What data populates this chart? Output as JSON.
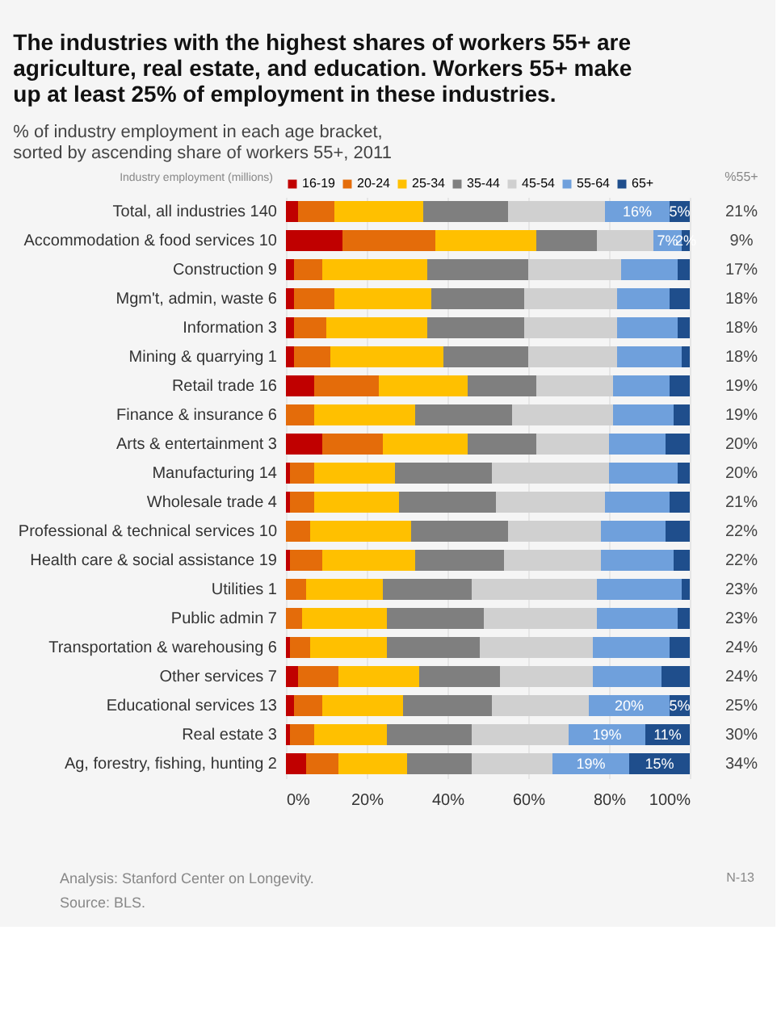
{
  "chart_data": {
    "type": "bar",
    "orientation": "horizontal",
    "stacked": true,
    "title": [
      "The industries with the highest shares of workers 55+ are",
      "agriculture, real estate, and education. Workers 55+ make",
      "up at least 25% of employment in these industries."
    ],
    "subtitle": [
      "% of industry employment in each age bracket,",
      "sorted by ascending share of workers 55+, 2011"
    ],
    "categories": [
      "Total, all industries  140",
      "Accommodation & food services  10",
      "Construction  9",
      "Mgm't, admin, waste  6",
      "Information  3",
      "Mining & quarrying  1",
      "Retail trade  16",
      "Finance & insurance  6",
      "Arts & entertainment  3",
      "Manufacturing  14",
      "Wholesale trade  4",
      "Professional & technical services  10",
      "Health care & social assistance  19",
      "Utilities  1",
      "Public admin  7",
      "Transportation & warehousing  6",
      "Other services  7",
      "Educational services  13",
      "Real estate  3",
      "Ag, forestry, fishing, hunting  2"
    ],
    "series": [
      {
        "name": "16-19",
        "color": "#c00000",
        "values": [
          3,
          14,
          2,
          2,
          2,
          2,
          7,
          0,
          9,
          1,
          1,
          0,
          1,
          0,
          0,
          1,
          3,
          2,
          1,
          5
        ]
      },
      {
        "name": "20-24",
        "color": "#e46c0a",
        "values": [
          9,
          23,
          7,
          10,
          8,
          9,
          16,
          7,
          15,
          6,
          6,
          6,
          8,
          5,
          4,
          5,
          10,
          7,
          6,
          8
        ]
      },
      {
        "name": "25-34",
        "color": "#ffc000",
        "values": [
          22,
          25,
          26,
          24,
          25,
          28,
          22,
          25,
          21,
          20,
          21,
          25,
          23,
          19,
          21,
          19,
          20,
          20,
          18,
          17
        ]
      },
      {
        "name": "35-44",
        "color": "#7f7f7f",
        "values": [
          21,
          15,
          25,
          23,
          24,
          21,
          17,
          24,
          17,
          24,
          24,
          24,
          22,
          22,
          24,
          23,
          20,
          22,
          21,
          16
        ]
      },
      {
        "name": "45-54",
        "color": "#d0d0d0",
        "values": [
          24,
          14,
          23,
          23,
          23,
          22,
          19,
          25,
          18,
          29,
          27,
          23,
          24,
          31,
          28,
          28,
          23,
          24,
          24,
          20
        ]
      },
      {
        "name": "55-64",
        "color": "#6fa0dc",
        "values": [
          16,
          7,
          14,
          13,
          15,
          16,
          14,
          15,
          14,
          17,
          16,
          16,
          18,
          21,
          20,
          19,
          17,
          20,
          19,
          19
        ],
        "value_labels": [
          "16%",
          "7%",
          null,
          null,
          null,
          null,
          null,
          null,
          null,
          null,
          null,
          null,
          null,
          null,
          null,
          null,
          null,
          "20%",
          "19%",
          "19%"
        ]
      },
      {
        "name": "65+",
        "color": "#1f4e8c",
        "values": [
          5,
          2,
          3,
          5,
          3,
          2,
          5,
          4,
          6,
          3,
          5,
          6,
          4,
          2,
          3,
          5,
          7,
          5,
          11,
          15
        ],
        "value_labels": [
          "5%",
          "2%",
          null,
          null,
          null,
          null,
          null,
          null,
          null,
          null,
          null,
          null,
          null,
          null,
          null,
          null,
          null,
          "5%",
          "11%",
          "15%"
        ]
      }
    ],
    "xlim": [
      0,
      100
    ],
    "xticks": [
      {
        "value": 0,
        "label": "0%"
      },
      {
        "value": 20,
        "label": "20%"
      },
      {
        "value": 40,
        "label": "40%"
      },
      {
        "value": 60,
        "label": "60%"
      },
      {
        "value": 80,
        "label": "80%"
      },
      {
        "value": 100,
        "label": "100%"
      }
    ],
    "grid": "x",
    "legend": "top",
    "annotations": [
      "Industry employment (millions)",
      "%55+",
      "21%",
      "9%",
      "17%",
      "18%",
      "18%",
      "18%",
      "19%",
      "19%",
      "20%",
      "20%",
      "21%",
      "22%",
      "22%",
      "23%",
      "23%",
      "24%",
      "24%",
      "25%",
      "30%",
      "34%",
      "Analysis: Stanford Center on Longevity.",
      "Source: BLS.",
      "N-13"
    ]
  }
}
